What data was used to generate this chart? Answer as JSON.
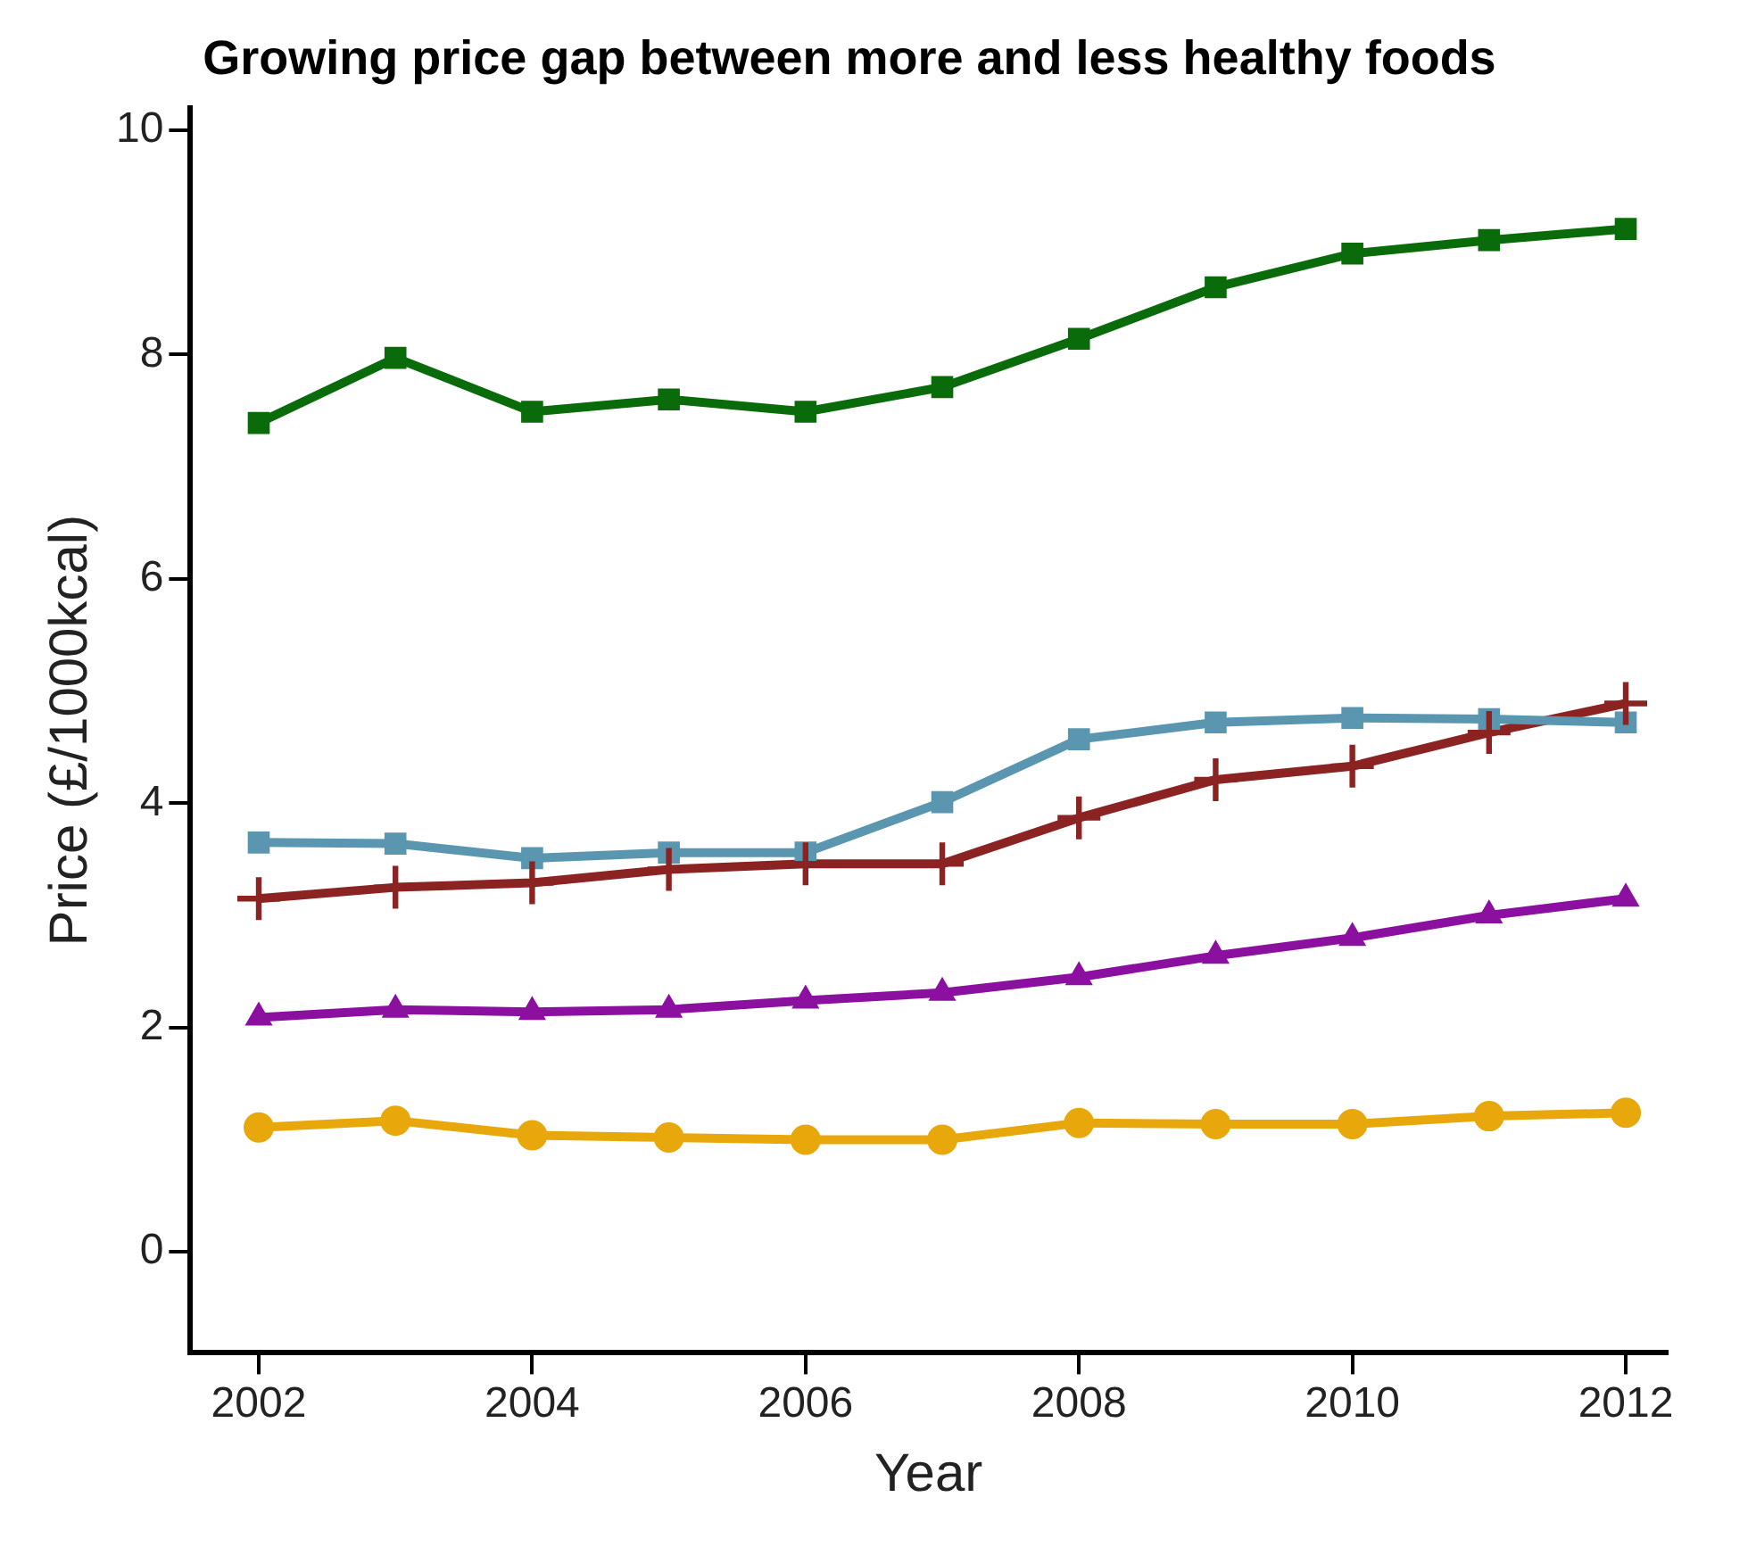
{
  "chart_data": {
    "type": "line",
    "title": "Growing price gap between more and less healthy foods",
    "xlabel": "Year",
    "ylabel": "Price (£/1000kcal)",
    "x": [
      2002,
      2003,
      2004,
      2005,
      2006,
      2007,
      2008,
      2009,
      2010,
      2011,
      2012
    ],
    "xlim": [
      2001.5,
      2012.3
    ],
    "xticks": [
      2002,
      2004,
      2006,
      2008,
      2010,
      2012
    ],
    "ylim": [
      -0.9,
      10.2
    ],
    "yticks": [
      0,
      2,
      4,
      6,
      8,
      10
    ],
    "grid": false,
    "legend": false,
    "line_style": "solid",
    "series": [
      {
        "color": "#0a6b0a",
        "marker": "square",
        "values": [
          7.39,
          7.97,
          7.49,
          7.6,
          7.49,
          7.71,
          8.14,
          8.6,
          8.9,
          9.02,
          9.12
        ]
      },
      {
        "color": "#5b96b0",
        "marker": "square",
        "values": [
          3.65,
          3.64,
          3.51,
          3.56,
          3.56,
          4.01,
          4.57,
          4.72,
          4.76,
          4.75,
          4.72
        ]
      },
      {
        "color": "#8b2323",
        "marker": "cross",
        "values": [
          3.15,
          3.25,
          3.29,
          3.41,
          3.46,
          3.46,
          3.87,
          4.21,
          4.33,
          4.63,
          4.89
        ]
      },
      {
        "color": "#8b10a0",
        "marker": "triangle",
        "values": [
          2.09,
          2.16,
          2.14,
          2.16,
          2.24,
          2.31,
          2.45,
          2.64,
          2.8,
          3.0,
          3.15
        ]
      },
      {
        "color": "#e8a80c",
        "marker": "circle",
        "values": [
          1.11,
          1.17,
          1.04,
          1.02,
          1.0,
          1.0,
          1.15,
          1.14,
          1.14,
          1.21,
          1.24
        ]
      }
    ]
  }
}
